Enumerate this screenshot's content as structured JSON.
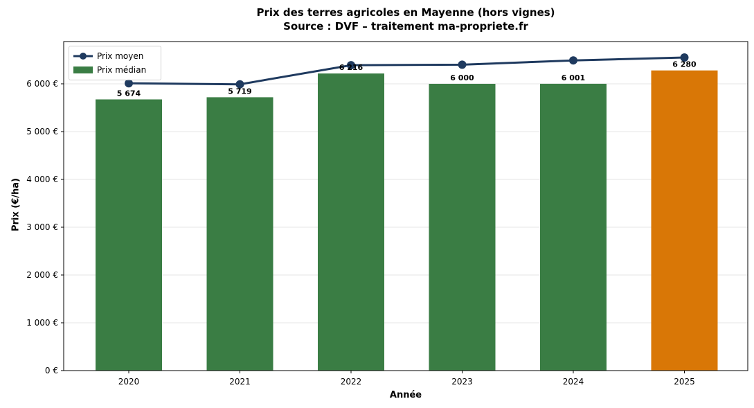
{
  "chart_data": {
    "type": "bar",
    "title": "Prix des terres agricoles en Mayenne (hors vignes)",
    "subtitle": "Source : DVF – traitement ma-propriete.fr",
    "xlabel": "Année",
    "ylabel": "Prix (€/ha)",
    "categories": [
      "2020",
      "2021",
      "2022",
      "2023",
      "2024",
      "2025"
    ],
    "series": [
      {
        "name": "Prix médian",
        "type": "bar",
        "values": [
          5674,
          5719,
          6216,
          6000,
          6001,
          6280
        ],
        "colors": [
          "#3a7d44",
          "#3a7d44",
          "#3a7d44",
          "#3a7d44",
          "#3a7d44",
          "#d97706"
        ]
      },
      {
        "name": "Prix moyen",
        "type": "line",
        "values": [
          6010,
          5990,
          6390,
          6400,
          6490,
          6550
        ],
        "color": "#1f3a5f"
      }
    ],
    "data_labels": [
      "5 674",
      "5 719",
      "6 216",
      "6 000",
      "6 001",
      "6 280"
    ],
    "yticks": [
      "0 €",
      "1 000 €",
      "2 000 €",
      "3 000 €",
      "4 000 €",
      "5 000 €",
      "6 000 €"
    ],
    "ylim": [
      0,
      6880
    ],
    "grid": "horizontal",
    "legend_position": "upper left"
  },
  "legend": {
    "line_label": "Prix moyen",
    "bar_label": "Prix médian"
  }
}
